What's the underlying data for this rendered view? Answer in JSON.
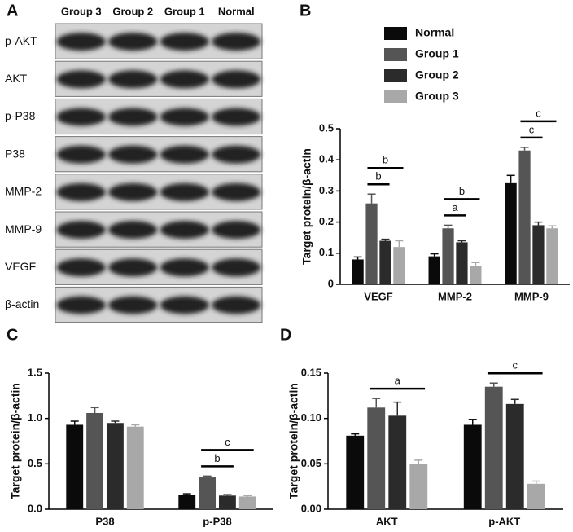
{
  "blot": {
    "label": "A",
    "lanes": [
      "Group 3",
      "Group 2",
      "Group 1",
      "Normal"
    ],
    "rows": [
      "p-AKT",
      "AKT",
      "p-P38",
      "P38",
      "MMP-2",
      "MMP-9",
      "VEGF",
      "β-actin"
    ]
  },
  "chart_data": [
    {
      "type": "bar",
      "label": "B",
      "ylabel": "Target protein/β-actin",
      "categories": [
        "VEGF",
        "MMP-2",
        "MMP-9"
      ],
      "series": [
        {
          "name": "Normal",
          "color": "#0a0a0a",
          "values": [
            0.08,
            0.09,
            0.325
          ],
          "errors": [
            0.008,
            0.008,
            0.025
          ]
        },
        {
          "name": "Group 1",
          "color": "#555555",
          "values": [
            0.26,
            0.18,
            0.43
          ],
          "errors": [
            0.03,
            0.01,
            0.01
          ]
        },
        {
          "name": "Group 2",
          "color": "#2b2b2b",
          "values": [
            0.14,
            0.135,
            0.19
          ],
          "errors": [
            0.005,
            0.005,
            0.01
          ]
        },
        {
          "name": "Group 3",
          "color": "#a8a8a8",
          "values": [
            0.12,
            0.06,
            0.18
          ],
          "errors": [
            0.02,
            0.01,
            0.008
          ]
        }
      ],
      "ylim": [
        0,
        0.5
      ],
      "yticks": [
        0,
        0.1,
        0.2,
        0.3,
        0.4,
        0.5
      ],
      "legend": true,
      "annotations": [
        {
          "text": "b",
          "category": 0,
          "series": [
            1,
            2
          ]
        },
        {
          "text": "b",
          "category": 0,
          "series": [
            1,
            3
          ]
        },
        {
          "text": "a",
          "category": 1,
          "series": [
            1,
            2
          ]
        },
        {
          "text": "b",
          "category": 1,
          "series": [
            1,
            3
          ]
        },
        {
          "text": "c",
          "category": 2,
          "series": [
            1,
            2
          ]
        },
        {
          "text": "c",
          "category": 2,
          "series": [
            1,
            3
          ]
        }
      ]
    },
    {
      "type": "bar",
      "label": "C",
      "ylabel": "Target protein/β-actin",
      "categories": [
        "P38",
        "p-P38"
      ],
      "series": [
        {
          "name": "Normal",
          "color": "#0a0a0a",
          "values": [
            0.93,
            0.16
          ],
          "errors": [
            0.04,
            0.01
          ]
        },
        {
          "name": "Group 1",
          "color": "#555555",
          "values": [
            1.06,
            0.35
          ],
          "errors": [
            0.06,
            0.015
          ]
        },
        {
          "name": "Group 2",
          "color": "#2b2b2b",
          "values": [
            0.95,
            0.15
          ],
          "errors": [
            0.02,
            0.01
          ]
        },
        {
          "name": "Group 3",
          "color": "#a8a8a8",
          "values": [
            0.91,
            0.14
          ],
          "errors": [
            0.02,
            0.01
          ]
        }
      ],
      "ylim": [
        0,
        1.5
      ],
      "yticks": [
        {
          "value": 0,
          "label": "0.0"
        },
        0.5,
        {
          "value": 1,
          "label": "1.0"
        },
        1.5
      ],
      "legend": false,
      "annotations": [
        {
          "text": "b",
          "category": 1,
          "series": [
            1,
            2
          ]
        },
        {
          "text": "c",
          "category": 1,
          "series": [
            1,
            3
          ]
        }
      ]
    },
    {
      "type": "bar",
      "label": "D",
      "ylabel": "Target protein/β-actin",
      "categories": [
        "AKT",
        "p-AKT"
      ],
      "series": [
        {
          "name": "Normal",
          "color": "#0a0a0a",
          "values": [
            0.081,
            0.093
          ],
          "errors": [
            0.002,
            0.006
          ]
        },
        {
          "name": "Group 1",
          "color": "#555555",
          "values": [
            0.112,
            0.135
          ],
          "errors": [
            0.01,
            0.004
          ]
        },
        {
          "name": "Group 2",
          "color": "#2b2b2b",
          "values": [
            0.103,
            0.116
          ],
          "errors": [
            0.015,
            0.005
          ]
        },
        {
          "name": "Group 3",
          "color": "#a8a8a8",
          "values": [
            0.05,
            0.028
          ],
          "errors": [
            0.004,
            0.003
          ]
        }
      ],
      "ylim": [
        0,
        0.15
      ],
      "yticks": [
        {
          "value": 0,
          "label": "0.00"
        },
        {
          "value": 0.05,
          "label": "0.05"
        },
        {
          "value": 0.1,
          "label": "0.10"
        },
        {
          "value": 0.15,
          "label": "0.15"
        }
      ],
      "legend": false,
      "annotations": [
        {
          "text": "a",
          "category": 0,
          "series": [
            1,
            3
          ]
        },
        {
          "text": "c",
          "category": 1,
          "series": [
            1,
            3
          ]
        }
      ]
    }
  ]
}
